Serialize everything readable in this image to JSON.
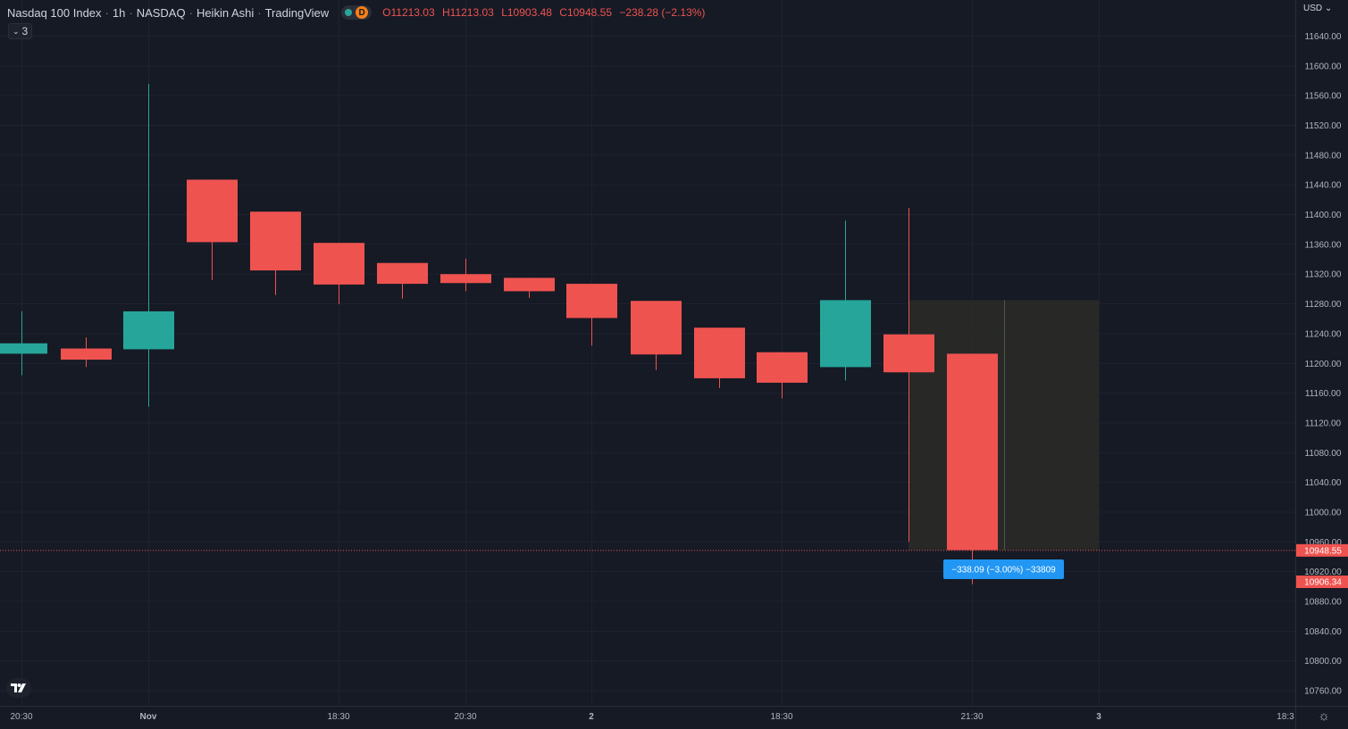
{
  "legend": {
    "symbol": "Nasdaq 100 Index",
    "interval": "1h",
    "exchange": "NASDAQ",
    "chart_style": "Heikin Ashi",
    "provider": "TradingView",
    "badge_letter": "D",
    "ohlc": {
      "o_key": "O",
      "o": "11213.03",
      "h_key": "H",
      "h": "11213.03",
      "l_key": "L",
      "l": "10903.48",
      "c_key": "C",
      "c": "10948.55",
      "change": "−238.28 (−2.13%)"
    },
    "indicators_count": "3"
  },
  "price_scale": {
    "currency": "USD",
    "labels": [
      "11640.00",
      "11600.00",
      "11560.00",
      "11520.00",
      "11480.00",
      "11440.00",
      "11400.00",
      "11360.00",
      "11320.00",
      "11280.00",
      "11240.00",
      "11200.00",
      "11160.00",
      "11120.00",
      "11080.00",
      "11040.00",
      "11000.00",
      "10960.00",
      "10920.00",
      "10880.00",
      "10840.00",
      "10800.00",
      "10760.00"
    ],
    "last_price_label": "10948.55",
    "cursor_price_label": "10906.34"
  },
  "time_scale": {
    "labels": [
      "20:30",
      "Nov",
      "18:30",
      "20:30",
      "2",
      "18:30",
      "21:30",
      "3",
      "18:3"
    ]
  },
  "measure_tool": {
    "label": "−338.09 (−3.00%) −33809"
  },
  "colors": {
    "background": "#161a25",
    "up": "#26a69a",
    "down": "#ef5350",
    "grid": "#1f2330",
    "measure_fill": "#2b2c28",
    "measure_label": "#2196f3"
  },
  "chart_data": {
    "type": "candlestick",
    "chart_style": "Heikin Ashi",
    "ylim": [
      10740,
      11660
    ],
    "candles": [
      {
        "o": 11213,
        "h": 11270,
        "l": 11184,
        "c": 11227
      },
      {
        "o": 11220,
        "h": 11235,
        "l": 11195,
        "c": 11205
      },
      {
        "o": 11219,
        "h": 11576,
        "l": 11142,
        "c": 11270
      },
      {
        "o": 11447,
        "h": 11447,
        "l": 11312,
        "c": 11363
      },
      {
        "o": 11404,
        "h": 11404,
        "l": 11292,
        "c": 11325
      },
      {
        "o": 11362,
        "h": 11362,
        "l": 11280,
        "c": 11306
      },
      {
        "o": 11335,
        "h": 11335,
        "l": 11287,
        "c": 11307
      },
      {
        "o": 11320,
        "h": 11341,
        "l": 11297,
        "c": 11308
      },
      {
        "o": 11315,
        "h": 11315,
        "l": 11288,
        "c": 11297
      },
      {
        "o": 11307,
        "h": 11307,
        "l": 11224,
        "c": 11261
      },
      {
        "o": 11284,
        "h": 11284,
        "l": 11191,
        "c": 11212
      },
      {
        "o": 11248,
        "h": 11248,
        "l": 11167,
        "c": 11180
      },
      {
        "o": 11215,
        "h": 11215,
        "l": 11153,
        "c": 11174
      },
      {
        "o": 11195,
        "h": 11392,
        "l": 11177,
        "c": 11285
      },
      {
        "o": 11239,
        "h": 11409,
        "l": 10960,
        "c": 11188
      },
      {
        "o": 11213,
        "h": 11213,
        "l": 10903,
        "c": 10949
      }
    ]
  }
}
